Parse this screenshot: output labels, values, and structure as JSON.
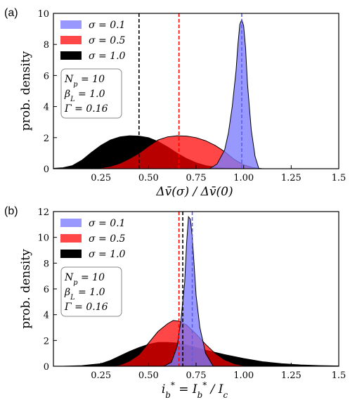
{
  "chart_data": [
    {
      "type": "area",
      "panel_label": "(a)",
      "xlabel": "Δv̄(σ) / Δv̄(0)",
      "ylabel": "prob. density",
      "xlim": [
        0.0,
        1.5
      ],
      "ylim": [
        0,
        10
      ],
      "xticks": [
        0.25,
        0.5,
        0.75,
        1.0,
        1.25,
        1.5
      ],
      "xtick_labels": [
        "0.25",
        "0.50",
        "0.75",
        "1.00",
        "1.25",
        "1.5"
      ],
      "yticks": [
        0,
        2,
        4,
        6,
        8,
        10
      ],
      "ytick_labels": [
        "0",
        "2",
        "4",
        "6",
        "8",
        "10"
      ],
      "legend_position": "top-right",
      "params": [
        "N_p = 10",
        "β_L = 1.0",
        "Γ = 0.16"
      ],
      "series": [
        {
          "name": "σ = 1.0",
          "color": "#000000",
          "mean": 0.45,
          "x": [
            0.0,
            0.05,
            0.1,
            0.15,
            0.2,
            0.25,
            0.3,
            0.35,
            0.4,
            0.45,
            0.5,
            0.55,
            0.6,
            0.65,
            0.7,
            0.75,
            0.8,
            0.85,
            0.9,
            0.95,
            1.0
          ],
          "y": [
            0.02,
            0.06,
            0.2,
            0.55,
            1.05,
            1.5,
            1.85,
            2.05,
            2.12,
            2.1,
            2.0,
            1.75,
            1.4,
            1.0,
            0.65,
            0.38,
            0.2,
            0.1,
            0.04,
            0.02,
            0.0
          ]
        },
        {
          "name": "σ = 0.5",
          "color": "#ff0000",
          "mean": 0.66,
          "x": [
            0.2,
            0.25,
            0.3,
            0.35,
            0.4,
            0.45,
            0.5,
            0.55,
            0.6,
            0.65,
            0.7,
            0.75,
            0.8,
            0.85,
            0.9,
            0.95,
            1.0,
            1.05,
            1.1
          ],
          "y": [
            0.0,
            0.05,
            0.15,
            0.35,
            0.65,
            1.0,
            1.45,
            1.85,
            2.05,
            2.12,
            2.1,
            2.0,
            1.8,
            1.5,
            1.1,
            0.6,
            0.25,
            0.06,
            0.0
          ]
        },
        {
          "name": "σ = 0.1",
          "color": "#7b7bff",
          "mean": 0.99,
          "x": [
            0.82,
            0.86,
            0.9,
            0.92,
            0.94,
            0.96,
            0.97,
            0.98,
            0.99,
            1.0,
            1.01,
            1.02,
            1.04,
            1.06,
            1.08
          ],
          "y": [
            0.0,
            0.3,
            1.2,
            2.3,
            4.0,
            6.3,
            8.0,
            9.3,
            9.6,
            9.2,
            7.8,
            5.5,
            2.5,
            0.8,
            0.0
          ]
        }
      ]
    },
    {
      "type": "area",
      "panel_label": "(b)",
      "xlabel": "i_b* = I_b* / I_c",
      "ylabel": "prob. density",
      "xlim": [
        0.0,
        1.5
      ],
      "ylim": [
        0,
        12
      ],
      "xticks": [
        0.25,
        0.5,
        0.75,
        1.0,
        1.25,
        1.5
      ],
      "xtick_labels": [
        "0.25",
        "0.50",
        "0.75",
        "1.00",
        "1.25",
        "1.5"
      ],
      "yticks": [
        0,
        2,
        4,
        6,
        8,
        10,
        12
      ],
      "ytick_labels": [
        "0",
        "2",
        "4",
        "6",
        "8",
        "10",
        "12"
      ],
      "legend_position": "top-right",
      "params": [
        "N_p = 10",
        "β_L = 1.0",
        "Γ = 0.16"
      ],
      "series": [
        {
          "name": "σ = 1.0",
          "color": "#000000",
          "mean": 0.68,
          "x": [
            0.05,
            0.15,
            0.25,
            0.3,
            0.35,
            0.4,
            0.45,
            0.5,
            0.55,
            0.6,
            0.65,
            0.7,
            0.75,
            0.8,
            0.9,
            1.0,
            1.1,
            1.2,
            1.3,
            1.4,
            1.5
          ],
          "y": [
            0.0,
            0.05,
            0.2,
            0.45,
            0.8,
            1.15,
            1.45,
            1.7,
            1.85,
            1.85,
            1.8,
            1.65,
            1.45,
            1.25,
            0.9,
            0.6,
            0.35,
            0.2,
            0.1,
            0.05,
            0.02
          ]
        },
        {
          "name": "σ = 0.5",
          "color": "#ff0000",
          "mean": 0.66,
          "x": [
            0.3,
            0.35,
            0.4,
            0.45,
            0.5,
            0.55,
            0.6,
            0.63,
            0.66,
            0.7,
            0.75,
            0.8,
            0.85,
            0.9,
            0.95,
            1.0,
            1.05
          ],
          "y": [
            0.0,
            0.1,
            0.4,
            0.9,
            1.8,
            2.7,
            3.3,
            3.55,
            3.5,
            3.2,
            2.5,
            1.7,
            1.0,
            0.5,
            0.2,
            0.05,
            0.0
          ]
        },
        {
          "name": "σ = 0.1",
          "color": "#7b7bff",
          "mean": 0.73,
          "x": [
            0.58,
            0.62,
            0.65,
            0.67,
            0.69,
            0.7,
            0.71,
            0.72,
            0.73,
            0.74,
            0.75,
            0.77,
            0.8,
            0.84
          ],
          "y": [
            0.0,
            0.3,
            1.5,
            3.5,
            6.5,
            9.5,
            11.6,
            11.4,
            10.0,
            7.8,
            5.5,
            3.0,
            1.0,
            0.0
          ]
        }
      ]
    }
  ],
  "legend_order": [
    "σ = 0.1",
    "σ = 0.5",
    "σ = 1.0"
  ]
}
